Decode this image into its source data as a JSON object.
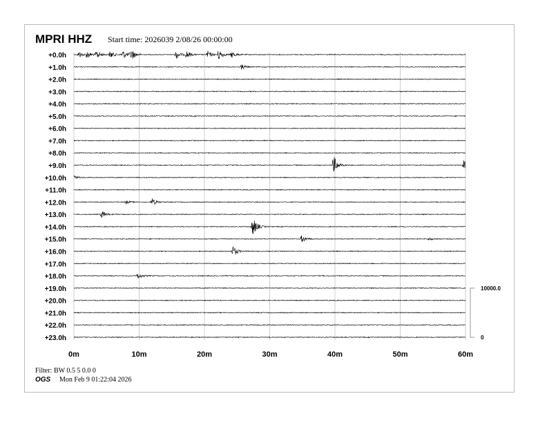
{
  "header": {
    "station": "MPRI HHZ",
    "start_time": "Start time: 2026039  2/08/26 00:00:00"
  },
  "footer": {
    "filter": "Filter: BW 0.5 5 0.0 0",
    "org": "OGS",
    "generated": "Mon Feb  9 01:22:04 2026"
  },
  "chart_data": {
    "type": "line",
    "title": "MPRI HHZ",
    "row_labels": [
      "+0.0h",
      "+1.0h",
      "+2.0h",
      "+3.0h",
      "+4.0h",
      "+5.0h",
      "+6.0h",
      "+7.0h",
      "+8.0h",
      "+9.0h",
      "+10.0h",
      "+11.0h",
      "+12.0h",
      "+13.0h",
      "+14.0h",
      "+15.0h",
      "+16.0h",
      "+17.0h",
      "+18.0h",
      "+19.0h",
      "+20.0h",
      "+21.0h",
      "+22.0h",
      "+23.0h"
    ],
    "x_ticks": [
      "0m",
      "10m",
      "20m",
      "30m",
      "40m",
      "50m",
      "60m"
    ],
    "xlim": [
      0,
      60
    ],
    "grid": true,
    "scale": {
      "max_label": "10000.0",
      "min_label": "0"
    },
    "trace_color": "#000000",
    "events": [
      {
        "hour": 0,
        "minute": 0.8,
        "amp": 0.25
      },
      {
        "hour": 0,
        "minute": 2,
        "amp": 0.3
      },
      {
        "hour": 0,
        "minute": 3.5,
        "amp": 0.35
      },
      {
        "hour": 0,
        "minute": 5.6,
        "amp": 0.3
      },
      {
        "hour": 0,
        "minute": 7.5,
        "amp": 0.35
      },
      {
        "hour": 0,
        "minute": 8.8,
        "amp": 0.45
      },
      {
        "hour": 0,
        "minute": 15.7,
        "amp": 0.35
      },
      {
        "hour": 0,
        "minute": 17.3,
        "amp": 0.3
      },
      {
        "hour": 0,
        "minute": 20.5,
        "amp": 0.3
      },
      {
        "hour": 0,
        "minute": 22.2,
        "amp": 0.45
      },
      {
        "hour": 0,
        "minute": 24.2,
        "amp": 0.25
      },
      {
        "hour": 1,
        "minute": 25.7,
        "amp": 0.2
      },
      {
        "hour": 9,
        "minute": 39.8,
        "amp": 0.75
      },
      {
        "hour": 9,
        "minute": 59.8,
        "amp": 0.5
      },
      {
        "hour": 10,
        "minute": 0.1,
        "amp": 0.15
      },
      {
        "hour": 12,
        "minute": 8,
        "amp": 0.12
      },
      {
        "hour": 12,
        "minute": 12,
        "amp": 0.3
      },
      {
        "hour": 13,
        "minute": 4.3,
        "amp": 0.3
      },
      {
        "hour": 14,
        "minute": 27.4,
        "amp": 0.8
      },
      {
        "hour": 15,
        "minute": 34.9,
        "amp": 0.3
      },
      {
        "hour": 15,
        "minute": 54.5,
        "amp": 0.1
      },
      {
        "hour": 16,
        "minute": 24.4,
        "amp": 0.45
      },
      {
        "hour": 18,
        "minute": 9.8,
        "amp": 0.25
      }
    ]
  }
}
